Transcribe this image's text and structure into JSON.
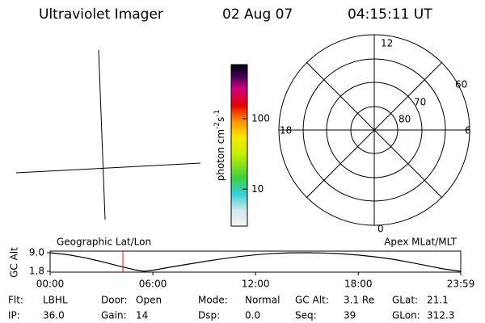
{
  "header": {
    "title": "Ultraviolet Imager",
    "date": "02 Aug 07",
    "time": "04:15:11 UT"
  },
  "colorbar": {
    "label": [
      "photon cm",
      "-2",
      "s",
      "-1"
    ],
    "log": true,
    "lim": [
      3,
      580
    ],
    "ticks": [
      100,
      10
    ]
  },
  "polar": {
    "mlt_labels": [
      "12",
      "18",
      "6",
      "0"
    ],
    "lat_labels": [
      "60",
      "70",
      "80"
    ]
  },
  "chart_data": {
    "type": "line",
    "left_label": "Geographic Lat/Lon",
    "right_label": "Apex MLat/MLT",
    "y_label": "GC Alt",
    "x": [
      0,
      1,
      2,
      3,
      4,
      5,
      5.5,
      6,
      7,
      8,
      9,
      10,
      11,
      12,
      13,
      14,
      15,
      16,
      17,
      18,
      19,
      20,
      21,
      22,
      23,
      23.983
    ],
    "series": [
      {
        "name": "GC Alt",
        "color": "#000000",
        "values": [
          9.0,
          8.3,
          7.1,
          5.6,
          3.9,
          2.3,
          1.8,
          2.2,
          3.4,
          4.5,
          5.6,
          6.6,
          7.5,
          8.2,
          8.7,
          8.95,
          9.0,
          8.9,
          8.6,
          8.1,
          7.4,
          6.5,
          5.3,
          4.0,
          2.7,
          1.8
        ]
      }
    ],
    "xlim": [
      0,
      23.983
    ],
    "xticks": [
      {
        "value": 0,
        "label": "00:00"
      },
      {
        "value": 6,
        "label": "06:00"
      },
      {
        "value": 12,
        "label": "12:00"
      },
      {
        "value": 18,
        "label": "18:00"
      },
      {
        "value": 23.983,
        "label": "23:59"
      }
    ],
    "ylim": [
      1.8,
      9.0
    ],
    "yticks": [
      {
        "value": 9.0,
        "label": "9.0"
      },
      1.8
    ],
    "marker_time": 4.25,
    "marker_color": "#ff0000"
  },
  "status": {
    "rows": [
      [
        [
          "Flt:",
          "LBHL"
        ],
        [
          "Door:",
          "Open"
        ],
        [
          "Mode:",
          "Normal"
        ],
        [
          "GC Alt:",
          "3.1 Re"
        ],
        [
          "GLat:",
          "21.1"
        ]
      ],
      [
        [
          "IP:",
          "36.0"
        ],
        [
          "Gain:",
          "14"
        ],
        [
          "Dsp:",
          "0.0"
        ],
        [
          "Seq:",
          "39"
        ],
        [
          "GLon:",
          "312.3"
        ]
      ]
    ]
  }
}
